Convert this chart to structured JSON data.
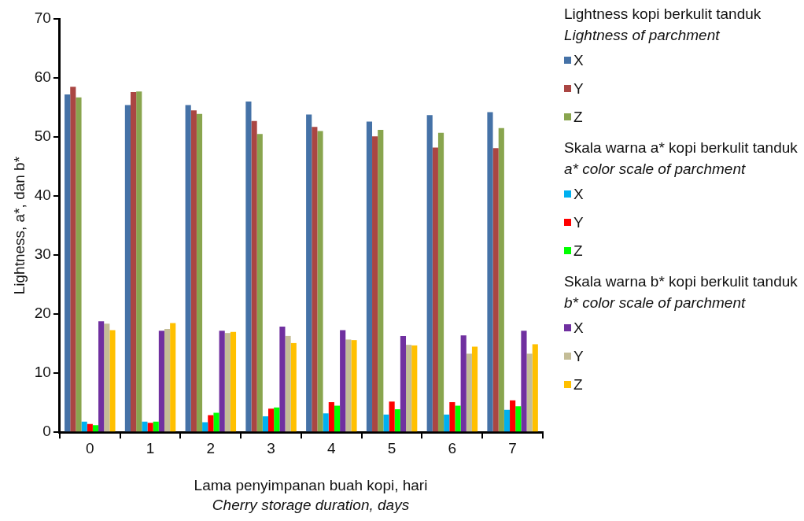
{
  "chart_data": {
    "type": "bar",
    "xlabel": "Lama penyimpanan buah kopi, hari\nCherry storage duration, days",
    "ylabel": "Lightness, a*, dan b*",
    "categories": [
      "0",
      "1",
      "2",
      "3",
      "4",
      "5",
      "6",
      "7"
    ],
    "series": [
      {
        "name": "X",
        "color": "#4572a7",
        "values": [
          57.2,
          55.4,
          55.4,
          56.0,
          53.8,
          52.6,
          53.7,
          54.2
        ]
      },
      {
        "name": "Y",
        "color": "#aa4643",
        "values": [
          58.5,
          57.6,
          54.5,
          52.7,
          51.7,
          50.1,
          48.2,
          48.1
        ]
      },
      {
        "name": "Z",
        "color": "#89a54e",
        "values": [
          56.7,
          57.7,
          53.9,
          50.5,
          51.0,
          51.2,
          50.7,
          51.5
        ]
      },
      {
        "name": "X",
        "color": "#00b0f0",
        "values": [
          1.8,
          1.8,
          1.7,
          2.7,
          3.2,
          3.0,
          3.0,
          3.8
        ]
      },
      {
        "name": "Y",
        "color": "#ff0000",
        "values": [
          1.4,
          1.6,
          2.9,
          4.0,
          5.1,
          5.2,
          5.1,
          5.4
        ]
      },
      {
        "name": "Z",
        "color": "#00ff00",
        "values": [
          1.2,
          1.8,
          3.3,
          4.2,
          4.5,
          3.9,
          4.5,
          4.4
        ]
      },
      {
        "name": "X",
        "color": "#7030a0",
        "values": [
          18.8,
          17.2,
          17.2,
          17.9,
          17.3,
          16.3,
          16.4,
          17.2
        ]
      },
      {
        "name": "Y",
        "color": "#c4bd97",
        "values": [
          18.4,
          17.5,
          16.8,
          16.3,
          15.7,
          14.8,
          13.3,
          13.3
        ]
      },
      {
        "name": "Z",
        "color": "#ffc000",
        "values": [
          17.3,
          18.5,
          17.0,
          15.1,
          15.6,
          14.7,
          14.5,
          14.9
        ]
      }
    ],
    "annotations": [
      "Lightness kopi berkulit tanduk",
      "Lightness of parchment",
      "Skala warna a* kopi berkulit tanduk",
      "a* color scale of parchment",
      "Skala warna b* kopi berkulit tanduk",
      "b* color scale of parchment"
    ],
    "ylim": [
      0,
      70
    ],
    "yticks": [
      0,
      10,
      20,
      30,
      40,
      50,
      60,
      70
    ],
    "grid": false,
    "legend": "right"
  }
}
